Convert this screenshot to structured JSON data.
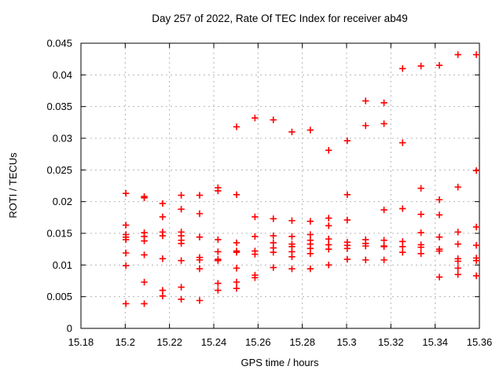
{
  "page": {
    "background": "#ffffff"
  },
  "chart_data": {
    "type": "scatter",
    "title": "Day 257 of 2022, Rate Of TEC Index for receiver ab49",
    "xlabel": "GPS time / hours",
    "ylabel": "ROTI / TECUs",
    "xlim": [
      15.18,
      15.36
    ],
    "ylim": [
      0,
      0.045
    ],
    "xtick_values": [
      15.18,
      15.2,
      15.22,
      15.24,
      15.26,
      15.28,
      15.3,
      15.32,
      15.34,
      15.36
    ],
    "xtick_labels": [
      "15.18",
      "15.2",
      "15.22",
      "15.24",
      "15.26",
      "15.28",
      "15.3",
      "15.32",
      "15.34",
      "15.36"
    ],
    "ytick_values": [
      0,
      0.005,
      0.01,
      0.015,
      0.02,
      0.025,
      0.03,
      0.035,
      0.04,
      0.045
    ],
    "ytick_labels": [
      "0",
      "0.005",
      "0.01",
      "0.015",
      "0.02",
      "0.025",
      "0.03",
      "0.035",
      "0.04",
      "0.045"
    ],
    "grid": true,
    "legend_position": "none",
    "axis_color": "#000000",
    "grid_color": "#b4b4b4",
    "marker": {
      "shape": "plus",
      "color": "#ff0000",
      "size": 9
    },
    "series": [
      {
        "name": "ROTI",
        "points": [
          [
            15.2003,
            0.0213
          ],
          [
            15.2003,
            0.0163
          ],
          [
            15.2003,
            0.0148
          ],
          [
            15.2003,
            0.0144
          ],
          [
            15.2003,
            0.014
          ],
          [
            15.2003,
            0.0119
          ],
          [
            15.2003,
            0.0099
          ],
          [
            15.2003,
            0.0039
          ],
          [
            15.2086,
            0.0208
          ],
          [
            15.2086,
            0.0206
          ],
          [
            15.2086,
            0.0151
          ],
          [
            15.2086,
            0.0145
          ],
          [
            15.2086,
            0.0138
          ],
          [
            15.2086,
            0.0116
          ],
          [
            15.2086,
            0.0073
          ],
          [
            15.2086,
            0.0039
          ],
          [
            15.2169,
            0.0197
          ],
          [
            15.2169,
            0.0176
          ],
          [
            15.2169,
            0.0152
          ],
          [
            15.2169,
            0.0146
          ],
          [
            15.2169,
            0.011
          ],
          [
            15.2169,
            0.006
          ],
          [
            15.2169,
            0.0051
          ],
          [
            15.2253,
            0.021
          ],
          [
            15.2253,
            0.0188
          ],
          [
            15.2253,
            0.0152
          ],
          [
            15.2253,
            0.0146
          ],
          [
            15.2253,
            0.0139
          ],
          [
            15.2253,
            0.0134
          ],
          [
            15.2253,
            0.0107
          ],
          [
            15.2253,
            0.0065
          ],
          [
            15.2253,
            0.0046
          ],
          [
            15.2336,
            0.021
          ],
          [
            15.2336,
            0.0181
          ],
          [
            15.2336,
            0.0144
          ],
          [
            15.2336,
            0.0112
          ],
          [
            15.2336,
            0.0108
          ],
          [
            15.2336,
            0.0094
          ],
          [
            15.2336,
            0.0044
          ],
          [
            15.2419,
            0.0222
          ],
          [
            15.2419,
            0.0217
          ],
          [
            15.2419,
            0.014
          ],
          [
            15.2419,
            0.0121
          ],
          [
            15.2419,
            0.0109
          ],
          [
            15.2419,
            0.0107
          ],
          [
            15.2419,
            0.0071
          ],
          [
            15.2419,
            0.006
          ],
          [
            15.2503,
            0.0318
          ],
          [
            15.2503,
            0.0211
          ],
          [
            15.2503,
            0.0135
          ],
          [
            15.2503,
            0.0122
          ],
          [
            15.2503,
            0.012
          ],
          [
            15.2503,
            0.0095
          ],
          [
            15.2503,
            0.0073
          ],
          [
            15.2503,
            0.0063
          ],
          [
            15.2586,
            0.0332
          ],
          [
            15.2586,
            0.0176
          ],
          [
            15.2586,
            0.0145
          ],
          [
            15.2586,
            0.0122
          ],
          [
            15.2586,
            0.0117
          ],
          [
            15.2586,
            0.0084
          ],
          [
            15.2586,
            0.008
          ],
          [
            15.2669,
            0.0329
          ],
          [
            15.2669,
            0.0173
          ],
          [
            15.2669,
            0.0146
          ],
          [
            15.2669,
            0.0135
          ],
          [
            15.2669,
            0.0127
          ],
          [
            15.2669,
            0.012
          ],
          [
            15.2669,
            0.0096
          ],
          [
            15.2753,
            0.031
          ],
          [
            15.2753,
            0.017
          ],
          [
            15.2753,
            0.0145
          ],
          [
            15.2753,
            0.0133
          ],
          [
            15.2753,
            0.0129
          ],
          [
            15.2753,
            0.0121
          ],
          [
            15.2753,
            0.0113
          ],
          [
            15.2753,
            0.0094
          ],
          [
            15.2836,
            0.0313
          ],
          [
            15.2836,
            0.0169
          ],
          [
            15.2836,
            0.0148
          ],
          [
            15.2836,
            0.0139
          ],
          [
            15.2836,
            0.0133
          ],
          [
            15.2836,
            0.0126
          ],
          [
            15.2836,
            0.0118
          ],
          [
            15.2836,
            0.0094
          ],
          [
            15.2919,
            0.0281
          ],
          [
            15.2919,
            0.0174
          ],
          [
            15.2919,
            0.0162
          ],
          [
            15.2919,
            0.0141
          ],
          [
            15.2919,
            0.0132
          ],
          [
            15.2919,
            0.0125
          ],
          [
            15.2919,
            0.01
          ],
          [
            15.3003,
            0.0296
          ],
          [
            15.3003,
            0.0211
          ],
          [
            15.3003,
            0.0171
          ],
          [
            15.3003,
            0.0136
          ],
          [
            15.3003,
            0.0131
          ],
          [
            15.3003,
            0.0126
          ],
          [
            15.3003,
            0.0109
          ],
          [
            15.3086,
            0.0359
          ],
          [
            15.3086,
            0.032
          ],
          [
            15.3086,
            0.014
          ],
          [
            15.3086,
            0.0134
          ],
          [
            15.3086,
            0.013
          ],
          [
            15.3086,
            0.0108
          ],
          [
            15.3169,
            0.0356
          ],
          [
            15.3169,
            0.0323
          ],
          [
            15.3169,
            0.0187
          ],
          [
            15.3169,
            0.0139
          ],
          [
            15.3169,
            0.013
          ],
          [
            15.3169,
            0.0129
          ],
          [
            15.3169,
            0.0108
          ],
          [
            15.3253,
            0.041
          ],
          [
            15.3253,
            0.0293
          ],
          [
            15.3253,
            0.0189
          ],
          [
            15.3253,
            0.0137
          ],
          [
            15.3253,
            0.0129
          ],
          [
            15.3253,
            0.012
          ],
          [
            15.3336,
            0.0414
          ],
          [
            15.3336,
            0.0221
          ],
          [
            15.3336,
            0.018
          ],
          [
            15.3336,
            0.0151
          ],
          [
            15.3336,
            0.0132
          ],
          [
            15.3336,
            0.0128
          ],
          [
            15.3336,
            0.0118
          ],
          [
            15.3419,
            0.0415
          ],
          [
            15.3419,
            0.0203
          ],
          [
            15.3419,
            0.0179
          ],
          [
            15.3419,
            0.0144
          ],
          [
            15.3419,
            0.0125
          ],
          [
            15.3419,
            0.0122
          ],
          [
            15.3419,
            0.0081
          ],
          [
            15.3503,
            0.0432
          ],
          [
            15.3503,
            0.0223
          ],
          [
            15.3503,
            0.0152
          ],
          [
            15.3503,
            0.0133
          ],
          [
            15.3503,
            0.011
          ],
          [
            15.3503,
            0.0106
          ],
          [
            15.3503,
            0.0095
          ],
          [
            15.3503,
            0.0085
          ],
          [
            15.3586,
            0.0432
          ],
          [
            15.3586,
            0.0249
          ],
          [
            15.3586,
            0.016
          ],
          [
            15.3586,
            0.0131
          ],
          [
            15.3586,
            0.0111
          ],
          [
            15.3586,
            0.0107
          ],
          [
            15.3586,
            0.0083
          ]
        ]
      }
    ]
  }
}
